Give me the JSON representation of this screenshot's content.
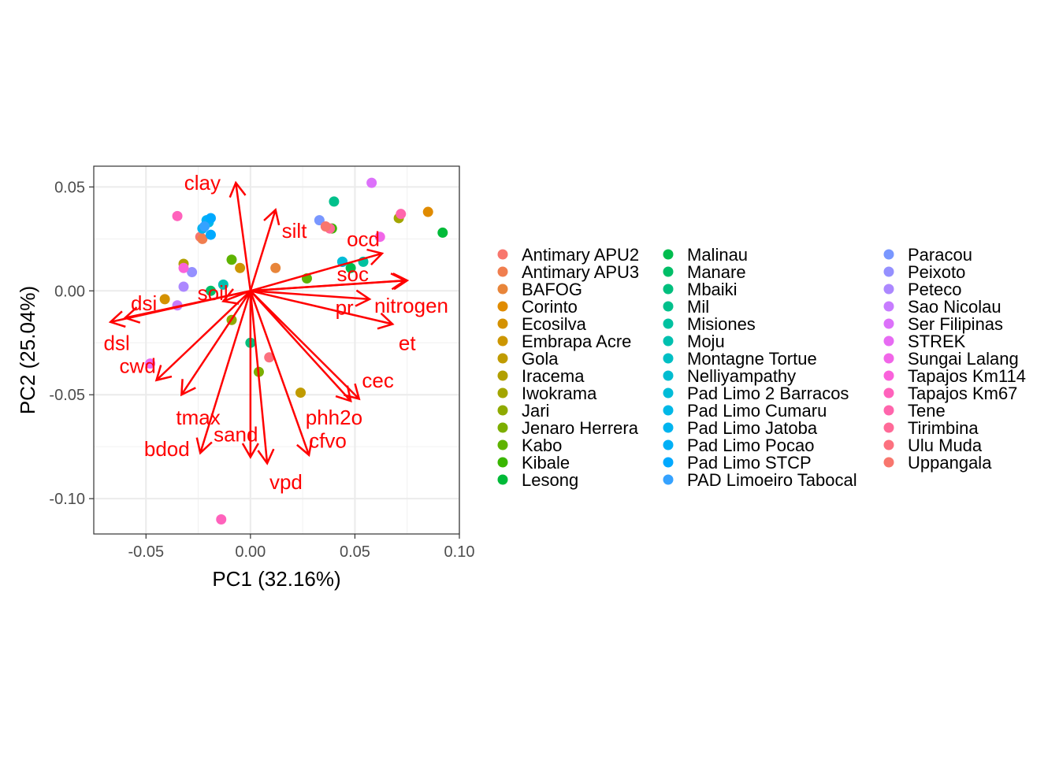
{
  "chart_data": {
    "type": "scatter",
    "subtype": "pca-biplot",
    "title": "",
    "xlabel": "PC1 (32.16%)",
    "ylabel": "PC2 (25.04%)",
    "xlim": [
      -0.075,
      0.1
    ],
    "ylim": [
      -0.117,
      0.06
    ],
    "x_ticks": [
      -0.05,
      0.0,
      0.05,
      0.1
    ],
    "x_tick_labels": [
      "-0.05",
      "0.00",
      "0.05",
      "0.10"
    ],
    "y_ticks": [
      -0.1,
      -0.05,
      0.0,
      0.05
    ],
    "y_tick_labels": [
      "-0.10",
      "-0.05",
      "0.00",
      "0.05"
    ],
    "grid": true,
    "legend_position": "right",
    "loading_color": "#ff0000",
    "series": [
      {
        "name": "Antimary APU2",
        "color": "#F8766D",
        "points": [
          [
            -0.024,
            0.026
          ]
        ]
      },
      {
        "name": "Antimary APU3",
        "color": "#F07E4F",
        "points": [
          [
            -0.023,
            0.025
          ]
        ]
      },
      {
        "name": "BAFOG",
        "color": "#E8853A",
        "points": [
          [
            0.012,
            0.011
          ]
        ]
      },
      {
        "name": "Corinto",
        "color": "#E08B00",
        "points": [
          [
            0.085,
            0.038
          ]
        ]
      },
      {
        "name": "Ecosilva",
        "color": "#D49100",
        "points": [
          [
            -0.041,
            -0.004
          ]
        ]
      },
      {
        "name": "Embrapa Acre",
        "color": "#CC9600",
        "points": [
          [
            -0.005,
            0.011
          ]
        ]
      },
      {
        "name": "Gola",
        "color": "#C09B00",
        "points": [
          [
            0.024,
            -0.049
          ]
        ]
      },
      {
        "name": "Iracema",
        "color": "#B29F00",
        "points": [
          [
            -0.032,
            0.013
          ]
        ]
      },
      {
        "name": "Iwokrama",
        "color": "#A3A500",
        "points": [
          [
            0.071,
            0.035
          ]
        ]
      },
      {
        "name": "Jari",
        "color": "#8FAA00",
        "points": [
          [
            -0.009,
            -0.014
          ]
        ]
      },
      {
        "name": "Jenaro Herrera",
        "color": "#7CAE00",
        "points": [
          [
            0.004,
            -0.039
          ]
        ]
      },
      {
        "name": "Kabo",
        "color": "#5EB300",
        "points": [
          [
            -0.009,
            0.015
          ],
          [
            0.027,
            0.006
          ]
        ]
      },
      {
        "name": "Kibale",
        "color": "#39B600",
        "points": [
          [
            0.039,
            0.03
          ]
        ]
      },
      {
        "name": "Lesong",
        "color": "#00BA38",
        "points": [
          [
            0.092,
            0.028
          ]
        ]
      },
      {
        "name": "Malinau",
        "color": "#00BC4E",
        "points": [
          [
            0.048,
            0.011
          ]
        ]
      },
      {
        "name": "Manare",
        "color": "#00BE67",
        "points": [
          [
            -0.019,
            0.0
          ]
        ]
      },
      {
        "name": "Mbaiki",
        "color": "#00BF7D",
        "points": [
          [
            0.0,
            -0.025
          ]
        ]
      },
      {
        "name": "Mil",
        "color": "#00C08B",
        "points": [
          [
            0.04,
            0.043
          ]
        ]
      },
      {
        "name": "Misiones",
        "color": "#00C1A0",
        "points": [
          [
            0.054,
            0.014
          ]
        ]
      },
      {
        "name": "Moju",
        "color": "#00C0AF",
        "points": [
          [
            -0.013,
            0.003
          ]
        ]
      },
      {
        "name": "Montagne Tortue",
        "color": "#00BFC4",
        "points": [
          [
            0.044,
            0.014
          ]
        ]
      },
      {
        "name": "Nelliyampathy",
        "color": "#00BCD0",
        "points": [
          [
            0.044,
            0.014
          ]
        ]
      },
      {
        "name": "Pad Limo 2 Barracos",
        "color": "#00BCD8",
        "points": [
          [
            0.044,
            0.014
          ]
        ]
      },
      {
        "name": "Pad Limo Cumaru",
        "color": "#00B8E7",
        "points": [
          [
            -0.02,
            0.033
          ]
        ]
      },
      {
        "name": "Pad Limo Jatoba",
        "color": "#00B4EF",
        "points": [
          [
            -0.023,
            0.03
          ]
        ]
      },
      {
        "name": "Pad Limo Pocao",
        "color": "#00B0F6",
        "points": [
          [
            -0.021,
            0.034
          ]
        ]
      },
      {
        "name": "Pad Limo STCP",
        "color": "#00A9FF",
        "points": [
          [
            -0.019,
            0.035
          ],
          [
            -0.019,
            0.027
          ]
        ]
      },
      {
        "name": "PAD Limoeiro Tabocal",
        "color": "#35A2FF",
        "points": [
          [
            -0.022,
            0.031
          ]
        ]
      },
      {
        "name": "Paracou",
        "color": "#7997FF",
        "points": [
          [
            0.033,
            0.034
          ]
        ]
      },
      {
        "name": "Peixoto",
        "color": "#9590FF",
        "points": [
          [
            -0.028,
            0.009
          ]
        ]
      },
      {
        "name": "Peteco",
        "color": "#AC88FF",
        "points": [
          [
            -0.032,
            0.002
          ]
        ]
      },
      {
        "name": "Sao Nicolau",
        "color": "#C77CFF",
        "points": [
          [
            -0.035,
            -0.007
          ]
        ]
      },
      {
        "name": "Ser Filipinas",
        "color": "#DC71FA",
        "points": [
          [
            0.058,
            0.052
          ]
        ]
      },
      {
        "name": "STREK",
        "color": "#E76BF3",
        "points": [
          [
            -0.048,
            -0.035
          ]
        ]
      },
      {
        "name": "Sungai Lalang",
        "color": "#F166E8",
        "points": [
          [
            0.062,
            0.026
          ]
        ]
      },
      {
        "name": "Tapajos Km114",
        "color": "#FA62DB",
        "points": [
          [
            -0.032,
            0.011
          ]
        ]
      },
      {
        "name": "Tapajos Km67",
        "color": "#FF62BC",
        "points": [
          [
            -0.035,
            0.036
          ],
          [
            -0.014,
            -0.11
          ]
        ]
      },
      {
        "name": "Tene",
        "color": "#FF65AC",
        "points": [
          [
            0.072,
            0.037
          ]
        ]
      },
      {
        "name": "Tirimbina",
        "color": "#FF6A98",
        "points": [
          [
            0.038,
            0.03
          ]
        ]
      },
      {
        "name": "Ulu Muda",
        "color": "#FC717F",
        "points": [
          [
            0.009,
            -0.032
          ]
        ]
      },
      {
        "name": "Uppangala",
        "color": "#F8766D",
        "points": [
          [
            0.036,
            0.031
          ]
        ]
      }
    ],
    "loadings": [
      {
        "name": "clay",
        "x": -0.007,
        "y": 0.052,
        "label_x": -0.023,
        "label_y": 0.052
      },
      {
        "name": "silt",
        "x": 0.012,
        "y": 0.039,
        "label_x": 0.021,
        "label_y": 0.029
      },
      {
        "name": "ocd",
        "x": 0.063,
        "y": 0.018,
        "label_x": 0.054,
        "label_y": 0.025
      },
      {
        "name": "soc",
        "x": 0.074,
        "y": 0.005,
        "label_x": 0.049,
        "label_y": 0.008
      },
      {
        "name": "pr",
        "x": 0.057,
        "y": -0.004,
        "label_x": 0.045,
        "label_y": -0.008
      },
      {
        "name": "nitrogen",
        "x": 0.075,
        "y": 0.005,
        "label_x": 0.077,
        "label_y": -0.007
      },
      {
        "name": "et",
        "x": 0.068,
        "y": -0.016,
        "label_x": 0.075,
        "label_y": -0.025
      },
      {
        "name": "cec",
        "x": 0.052,
        "y": -0.052,
        "label_x": 0.061,
        "label_y": -0.043
      },
      {
        "name": "phh2o",
        "x": 0.048,
        "y": -0.053,
        "label_x": 0.04,
        "label_y": -0.061
      },
      {
        "name": "cfvo",
        "x": 0.028,
        "y": -0.079,
        "label_x": 0.037,
        "label_y": -0.072
      },
      {
        "name": "vpd",
        "x": 0.008,
        "y": -0.083,
        "label_x": 0.017,
        "label_y": -0.092
      },
      {
        "name": "sand",
        "x": 0.0,
        "y": -0.08,
        "label_x": -0.007,
        "label_y": -0.069
      },
      {
        "name": "bdod",
        "x": -0.024,
        "y": -0.078,
        "label_x": -0.04,
        "label_y": -0.076
      },
      {
        "name": "tmax",
        "x": -0.033,
        "y": -0.05,
        "label_x": -0.025,
        "label_y": -0.061
      },
      {
        "name": "cwd",
        "x": -0.045,
        "y": -0.043,
        "label_x": -0.054,
        "label_y": -0.036
      },
      {
        "name": "dsl",
        "x": -0.067,
        "y": -0.015,
        "label_x": -0.064,
        "label_y": -0.025
      },
      {
        "name": "dsi",
        "x": -0.06,
        "y": -0.013,
        "label_x": -0.051,
        "label_y": -0.006
      },
      {
        "name": "soil",
        "x": -0.013,
        "y": -0.005,
        "label_x": -0.018,
        "label_y": -0.001
      }
    ]
  }
}
